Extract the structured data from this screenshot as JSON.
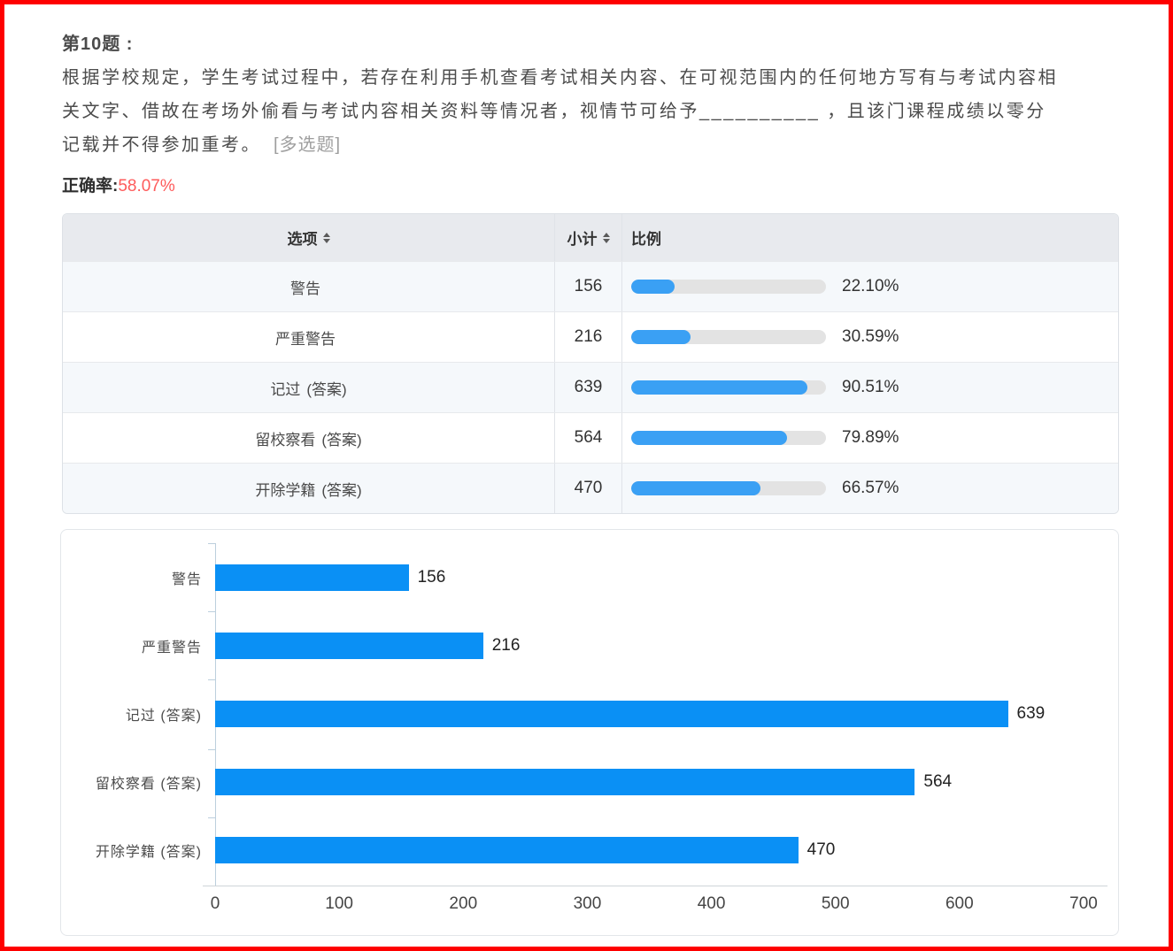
{
  "question": {
    "number_label": "第10题 :",
    "text": "根据学校规定，学生考试过程中，若存在利用手机查看考试相关内容、在可视范围内的任何地方写有与考试内容相关文字、借故在考场外偷看与考试内容相关资料等情况者，视情节可给予__________ ，且该门课程成绩以零分记载并不得参加重考。",
    "type_tag": "[多选题]"
  },
  "accuracy": {
    "label": "正确率:",
    "value": "58.07%"
  },
  "table": {
    "headers": {
      "option": "选项",
      "count": "小计",
      "ratio": "比例"
    },
    "rows": [
      {
        "option": "警告",
        "answer": "",
        "count": "156",
        "percent": 22.1,
        "percent_label": "22.10%"
      },
      {
        "option": "严重警告",
        "answer": "",
        "count": "216",
        "percent": 30.59,
        "percent_label": "30.59%"
      },
      {
        "option": "记过",
        "answer": "(答案)",
        "count": "639",
        "percent": 90.51,
        "percent_label": "90.51%"
      },
      {
        "option": "留校察看",
        "answer": "(答案)",
        "count": "564",
        "percent": 79.89,
        "percent_label": "79.89%"
      },
      {
        "option": "开除学籍",
        "answer": "(答案)",
        "count": "470",
        "percent": 66.57,
        "percent_label": "66.57%"
      }
    ]
  },
  "chart_data": {
    "type": "bar",
    "orientation": "horizontal",
    "title": "",
    "categories": [
      "警告",
      "严重警告",
      "记过 (答案)",
      "留校察看 (答案)",
      "开除学籍 (答案)"
    ],
    "values": [
      156,
      216,
      639,
      564,
      470
    ],
    "xlim": [
      0,
      700
    ],
    "xticks": [
      0,
      100,
      200,
      300,
      400,
      500,
      600,
      700
    ],
    "grid": false,
    "legend": false,
    "value_labels": true
  },
  "colors": {
    "page_border": "#fe0000",
    "accuracy_red": "#fe5b5b",
    "answer_orange": "#ff9d2b",
    "pill_blue": "#3aa0f4",
    "pill_track": "#e3e3e3",
    "chart_bar_blue": "#0a90f5",
    "header_bg": "#e8eaee",
    "odd_row_bg": "#f5f8fb"
  }
}
